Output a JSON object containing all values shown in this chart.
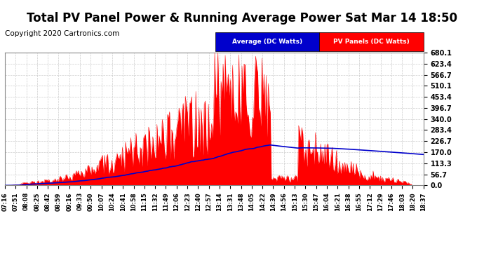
{
  "title": "Total PV Panel Power & Running Average Power Sat Mar 14 18:50",
  "copyright": "Copyright 2020 Cartronics.com",
  "ytick_vals": [
    680.1,
    623.4,
    566.7,
    510.1,
    453.4,
    396.7,
    340.0,
    283.4,
    226.7,
    170.0,
    113.3,
    56.7,
    0.0
  ],
  "ylim_max": 680.1,
  "pv_color": "#ff0000",
  "avg_color": "#0000cc",
  "bg_color": "#ffffff",
  "grid_color": "#cccccc",
  "title_fontsize": 12,
  "copyright_fontsize": 7.5,
  "ytick_fontsize": 7,
  "xtick_fontsize": 6,
  "legend_avg_label": "Average (DC Watts)",
  "legend_pv_label": "PV Panels (DC Watts)",
  "legend_avg_bg": "#0000cc",
  "legend_pv_bg": "#ff0000",
  "x_tick_labels": [
    "07:16",
    "07:51",
    "08:08",
    "08:25",
    "08:42",
    "08:59",
    "09:16",
    "09:33",
    "09:50",
    "10:07",
    "10:24",
    "10:41",
    "10:58",
    "11:15",
    "11:32",
    "11:49",
    "12:06",
    "12:23",
    "12:40",
    "12:57",
    "13:14",
    "13:31",
    "13:48",
    "14:05",
    "14:22",
    "14:39",
    "14:56",
    "15:13",
    "15:30",
    "15:47",
    "16:04",
    "16:21",
    "16:38",
    "16:55",
    "17:12",
    "17:29",
    "17:46",
    "18:03",
    "18:20",
    "18:37"
  ]
}
